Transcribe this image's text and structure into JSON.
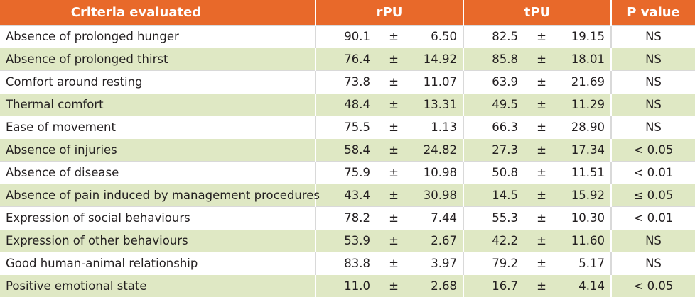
{
  "header": {
    "criteria": "Criteria evaluated",
    "rpu": "rPU",
    "tpu": "tPU",
    "pvalue": "P value"
  },
  "pm_symbol": "±",
  "colors": {
    "header_bg": "#e8692a",
    "header_text": "#ffffff",
    "stripe": "#dfe8c4"
  },
  "rows": [
    {
      "criteria": "Absence of prolonged hunger",
      "rpu_mean": "90.1",
      "rpu_sd": "6.50",
      "tpu_mean": "82.5",
      "tpu_sd": "19.15",
      "p": "NS"
    },
    {
      "criteria": "Absence of prolonged thirst",
      "rpu_mean": "76.4",
      "rpu_sd": "14.92",
      "tpu_mean": "85.8",
      "tpu_sd": "18.01",
      "p": "NS"
    },
    {
      "criteria": "Comfort around resting",
      "rpu_mean": "73.8",
      "rpu_sd": "11.07",
      "tpu_mean": "63.9",
      "tpu_sd": "21.69",
      "p": "NS"
    },
    {
      "criteria": "Thermal comfort",
      "rpu_mean": "48.4",
      "rpu_sd": "13.31",
      "tpu_mean": "49.5",
      "tpu_sd": "11.29",
      "p": "NS"
    },
    {
      "criteria": "Ease of movement",
      "rpu_mean": "75.5",
      "rpu_sd": "1.13",
      "tpu_mean": "66.3",
      "tpu_sd": "28.90",
      "p": "NS"
    },
    {
      "criteria": "Absence of injuries",
      "rpu_mean": "58.4",
      "rpu_sd": "24.82",
      "tpu_mean": "27.3",
      "tpu_sd": "17.34",
      "p": "< 0.05"
    },
    {
      "criteria": "Absence of disease",
      "rpu_mean": "75.9",
      "rpu_sd": "10.98",
      "tpu_mean": "50.8",
      "tpu_sd": "11.51",
      "p": "< 0.01"
    },
    {
      "criteria": "Absence of pain induced by management procedures",
      "rpu_mean": "43.4",
      "rpu_sd": "30.98",
      "tpu_mean": "14.5",
      "tpu_sd": "15.92",
      "p": "≤ 0.05"
    },
    {
      "criteria": "Expression of social behaviours",
      "rpu_mean": "78.2",
      "rpu_sd": "7.44",
      "tpu_mean": "55.3",
      "tpu_sd": "10.30",
      "p": "< 0.01"
    },
    {
      "criteria": "Expression of other behaviours",
      "rpu_mean": "53.9",
      "rpu_sd": "2.67",
      "tpu_mean": "42.2",
      "tpu_sd": "11.60",
      "p": "NS"
    },
    {
      "criteria": "Good human-animal relationship",
      "rpu_mean": "83.8",
      "rpu_sd": "3.97",
      "tpu_mean": "79.2",
      "tpu_sd": "5.17",
      "p": "NS"
    },
    {
      "criteria": "Positive emotional state",
      "rpu_mean": "11.0",
      "rpu_sd": "2.68",
      "tpu_mean": "16.7",
      "tpu_sd": "4.14",
      "p": "< 0.05"
    }
  ]
}
